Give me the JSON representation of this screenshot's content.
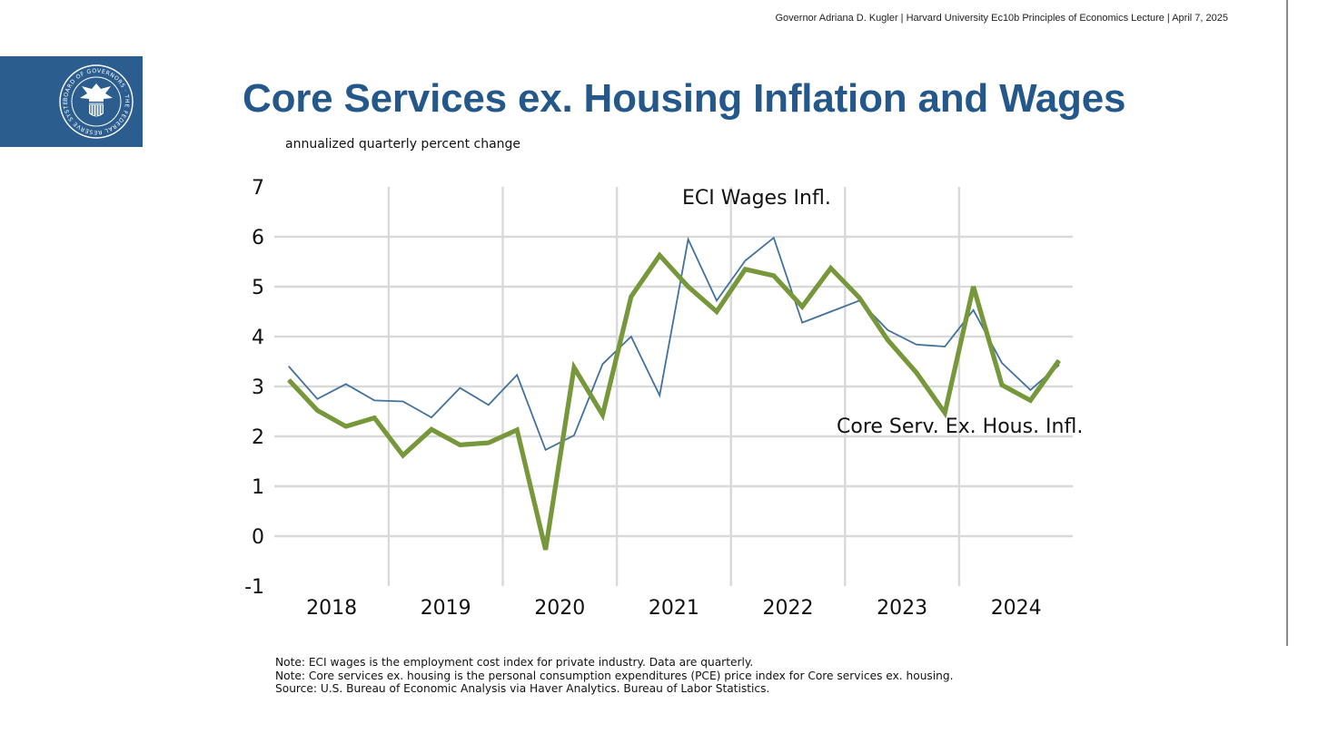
{
  "header": {
    "text": "Governor Adriana D. Kugler | Harvard University Ec10b Principles of Economics Lecture | April 7, 2025"
  },
  "logo": {
    "icon": "federal-reserve-seal-icon",
    "text": "BOARD OF GOVERNORS · THE FEDERAL RESERVE SYSTEM"
  },
  "title": "Core Services ex. Housing Inflation and Wages",
  "subtitle": "annualized quarterly percent change",
  "notes": [
    "Note: ECI wages is the employment cost index for private industry. Data are quarterly.",
    "Note: Core services ex. housing is the personal consumption expenditures (PCE) price index for Core services ex. housing.",
    "Source: U.S. Bureau of Economic Analysis via Haver Analytics. Bureau of Labor Statistics."
  ],
  "colors": {
    "title": "#24588a",
    "seal_background": "#2b5d8e",
    "eci_line": "#41719c",
    "core_line": "#76973a",
    "grid": "#d9d9d9"
  },
  "chart_data": {
    "type": "line",
    "title": "",
    "xlabel": "",
    "ylabel": "",
    "ylim": [
      -1,
      7
    ],
    "yticks": [
      -1,
      0,
      1,
      2,
      3,
      4,
      5,
      6,
      7
    ],
    "ytick_labels": [
      "-1",
      "0",
      "1",
      "2",
      "3",
      "4",
      "5",
      "6",
      "7"
    ],
    "grid": true,
    "x_group_labels": [
      "2018",
      "2019",
      "2020",
      "2021",
      "2022",
      "2023",
      "2024"
    ],
    "x": [
      "2018Q1",
      "2018Q2",
      "2018Q3",
      "2018Q4",
      "2019Q1",
      "2019Q2",
      "2019Q3",
      "2019Q4",
      "2020Q1",
      "2020Q2",
      "2020Q3",
      "2020Q4",
      "2021Q1",
      "2021Q2",
      "2021Q3",
      "2021Q4",
      "2022Q1",
      "2022Q2",
      "2022Q3",
      "2022Q4",
      "2023Q1",
      "2023Q2",
      "2023Q3",
      "2023Q4",
      "2024Q1",
      "2024Q2",
      "2024Q3",
      "2024Q4"
    ],
    "series": [
      {
        "name": "ECI Wages Infl.",
        "values": [
          3.4,
          2.75,
          3.05,
          2.72,
          2.7,
          2.38,
          2.97,
          2.63,
          3.23,
          1.73,
          2.02,
          3.45,
          4.0,
          2.82,
          5.95,
          4.72,
          5.52,
          5.98,
          4.28,
          4.5,
          4.72,
          4.13,
          3.84,
          3.8,
          4.53,
          3.47,
          2.93,
          3.43
        ]
      },
      {
        "name": "Core Serv. Ex. Hous. Infl.",
        "values": [
          3.13,
          2.52,
          2.2,
          2.37,
          1.62,
          2.14,
          1.83,
          1.87,
          2.13,
          -0.27,
          3.38,
          2.43,
          4.8,
          5.63,
          5.0,
          4.5,
          5.35,
          5.22,
          4.6,
          5.37,
          4.78,
          3.93,
          3.28,
          2.47,
          5.0,
          3.03,
          2.72,
          3.52
        ]
      }
    ]
  }
}
